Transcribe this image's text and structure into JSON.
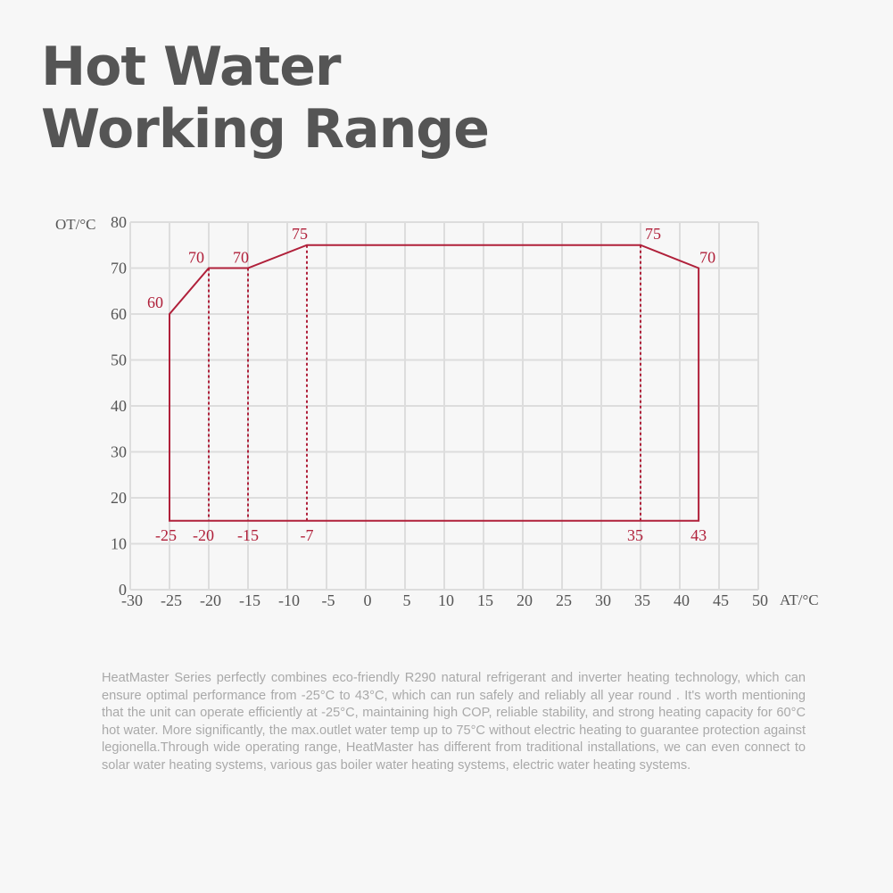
{
  "title": {
    "line1": "Hot Water",
    "line2": "Working Range"
  },
  "description": "HeatMaster Series perfectly combines eco-friendly R290 natural refrigerant and inverter heating technology, which can ensure optimal performance from -25°C to 43°C, which can run safely and reliably all year round . It's worth mentioning that the unit can operate efficiently at -25°C, maintaining high COP, reliable stability, and strong heating capacity for 60°C hot water. More significantly, the max.outlet water temp up to 75°C without electric heating to guarantee protection against legionella.Through wide operating range, HeatMaster has different from traditional installations, we can even connect to solar water heating systems, various gas boiler water heating systems, electric water heating systems.",
  "colors": {
    "accent": "#b0203a",
    "grid": "#dddddd",
    "text": "#555555",
    "description": "#a9a9a9",
    "background": "#f7f7f7"
  },
  "chart_data": {
    "type": "area",
    "title": "Hot Water Working Range",
    "xlabel": "AT/°C",
    "ylabel": "OT/°C",
    "xlim": [
      -30,
      50
    ],
    "ylim": [
      0,
      80
    ],
    "grid": true,
    "x_ticks": [
      -30,
      -25,
      -20,
      -15,
      -10,
      -5,
      0,
      5,
      10,
      15,
      20,
      25,
      30,
      35,
      40,
      45,
      50
    ],
    "y_ticks": [
      0,
      10,
      20,
      30,
      40,
      50,
      60,
      70,
      80
    ],
    "boundary": {
      "upper": [
        {
          "x": -25,
          "y": 60
        },
        {
          "x": -20,
          "y": 70
        },
        {
          "x": -15,
          "y": 70
        },
        {
          "x": -7,
          "y": 75
        },
        {
          "x": 35,
          "y": 75
        },
        {
          "x": 43,
          "y": 70
        }
      ],
      "lower_y": 15
    },
    "point_labels": [
      {
        "x": -25,
        "label": "60"
      },
      {
        "x": -20,
        "label": "70"
      },
      {
        "x": -15,
        "label": "70"
      },
      {
        "x": -7,
        "label": "75"
      },
      {
        "x": 35,
        "label": "75"
      },
      {
        "x": 43,
        "label": "70"
      }
    ],
    "x_markers": [
      "-25",
      "-20",
      "-15",
      "-7",
      "35",
      "43"
    ]
  }
}
